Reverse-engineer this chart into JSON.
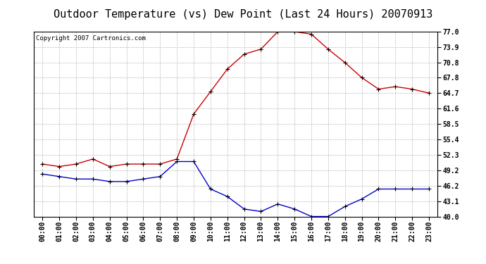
{
  "title": "Outdoor Temperature (vs) Dew Point (Last 24 Hours) 20070913",
  "copyright_text": "Copyright 2007 Cartronics.com",
  "hours": [
    "00:00",
    "01:00",
    "02:00",
    "03:00",
    "04:00",
    "05:00",
    "06:00",
    "07:00",
    "08:00",
    "09:00",
    "10:00",
    "11:00",
    "12:00",
    "13:00",
    "14:00",
    "15:00",
    "16:00",
    "17:00",
    "18:00",
    "19:00",
    "20:00",
    "21:00",
    "22:00",
    "23:00"
  ],
  "temp": [
    50.5,
    50.0,
    50.5,
    51.5,
    50.0,
    50.5,
    50.5,
    50.5,
    51.5,
    60.5,
    65.0,
    69.5,
    72.5,
    73.5,
    77.0,
    77.0,
    76.5,
    73.5,
    70.8,
    67.8,
    65.5,
    66.0,
    65.5,
    64.7
  ],
  "dewpoint": [
    48.5,
    48.0,
    47.5,
    47.5,
    47.0,
    47.0,
    47.5,
    48.0,
    51.0,
    51.0,
    45.5,
    44.0,
    41.5,
    41.0,
    42.5,
    41.5,
    40.0,
    40.0,
    42.0,
    43.5,
    45.5,
    45.5,
    45.5,
    45.5
  ],
  "temp_color": "#cc0000",
  "dewpoint_color": "#0000cc",
  "bg_color": "#ffffff",
  "plot_bg_color": "#ffffff",
  "grid_color": "#bbbbbb",
  "ylim": [
    40.0,
    77.0
  ],
  "yticks": [
    40.0,
    43.1,
    46.2,
    49.2,
    52.3,
    55.4,
    58.5,
    61.6,
    64.7,
    67.8,
    70.8,
    73.9,
    77.0
  ],
  "title_fontsize": 11,
  "tick_fontsize": 7,
  "copyright_fontsize": 6.5,
  "marker_size": 4,
  "line_width": 1.0
}
